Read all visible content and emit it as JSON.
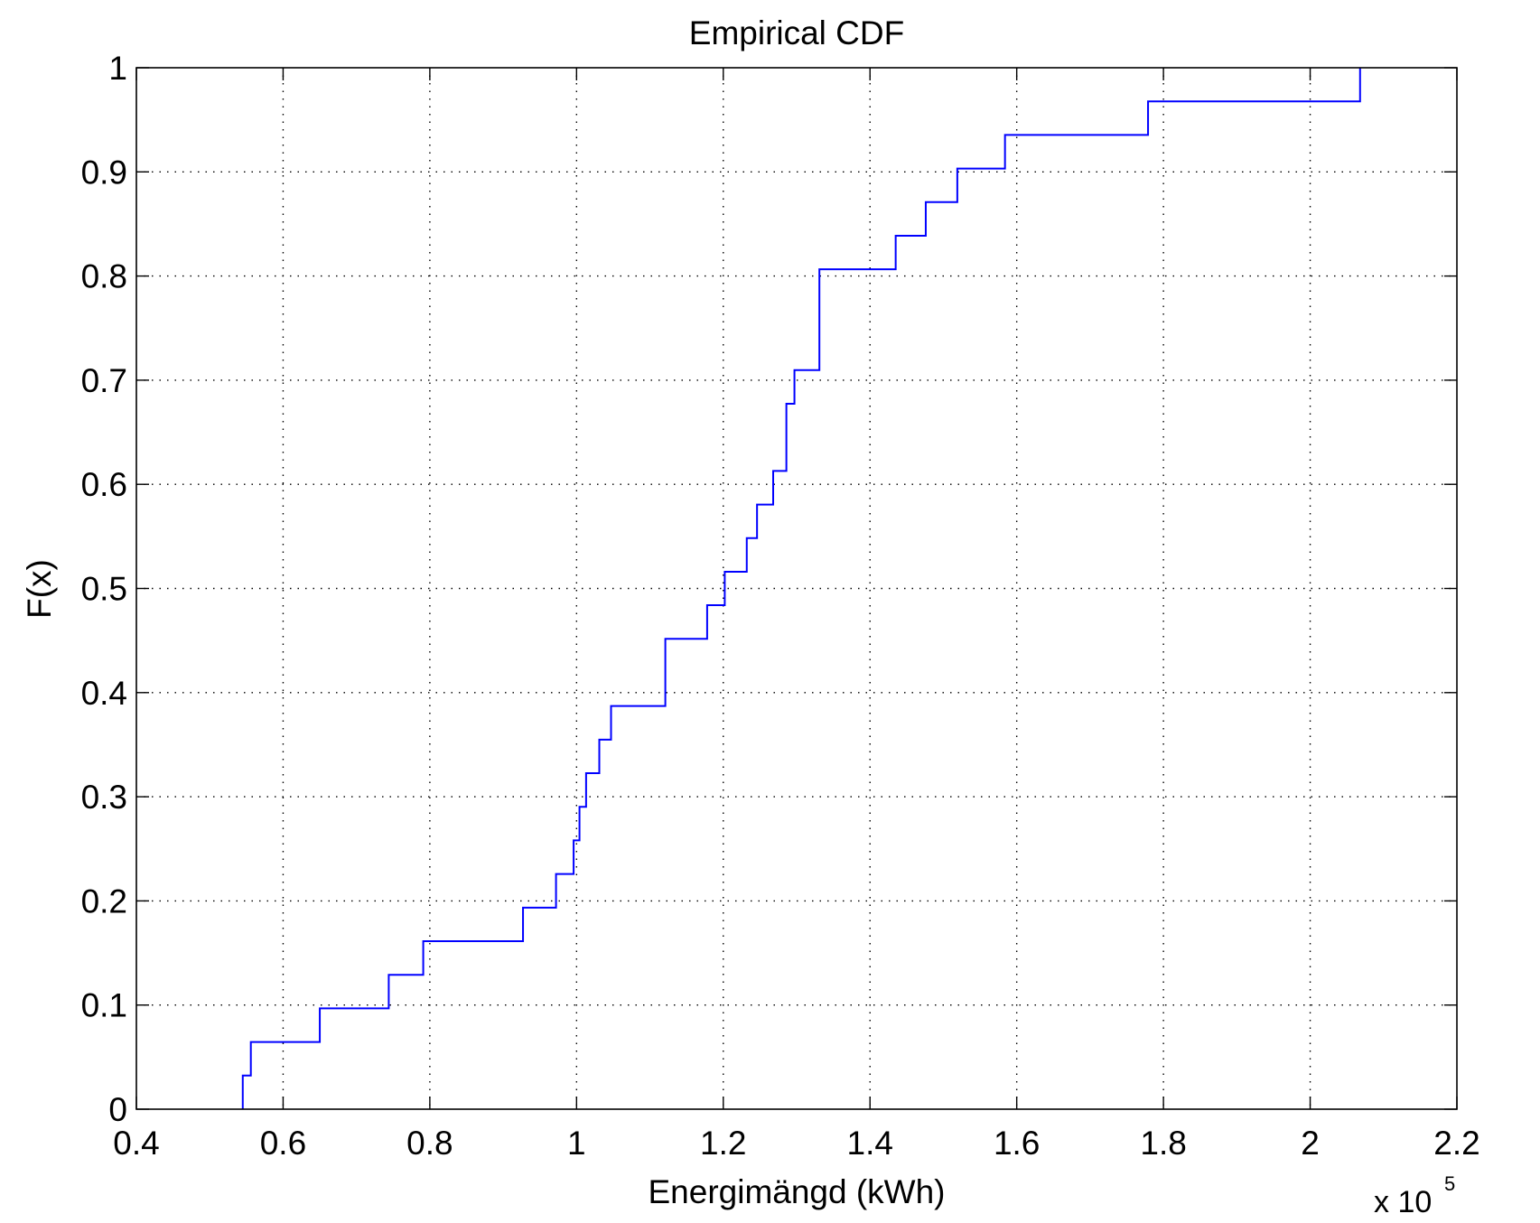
{
  "chart_data": {
    "type": "line",
    "subtype": "empirical-cdf-stairs",
    "title": "Empirical CDF",
    "xlabel": "Energimängd (kWh)",
    "ylabel": "F(x)",
    "x_multiplier": "x 10",
    "x_multiplier_exponent": "5",
    "xlim": [
      0.4,
      2.2
    ],
    "ylim": [
      0,
      1
    ],
    "x_ticks": [
      "0.4",
      "0.6",
      "0.8",
      "1",
      "1.2",
      "1.4",
      "1.6",
      "1.8",
      "2",
      "2.2"
    ],
    "y_ticks": [
      "0",
      "0.1",
      "0.2",
      "0.3",
      "0.4",
      "0.5",
      "0.6",
      "0.7",
      "0.8",
      "0.9",
      "1"
    ],
    "grid": true,
    "grid_style": "dotted",
    "series": [
      {
        "color": "#0000ff",
        "x": [
          0.545,
          0.556,
          0.65,
          0.744,
          0.791,
          0.927,
          0.972,
          0.996,
          1.004,
          1.013,
          1.031,
          1.047,
          1.121,
          1.178,
          1.202,
          1.232,
          1.246,
          1.268,
          1.286,
          1.297,
          1.331,
          1.435,
          1.476,
          1.519,
          1.584,
          1.779,
          2.068
        ],
        "y": [
          0.0323,
          0.0645,
          0.0968,
          0.129,
          0.1613,
          0.1935,
          0.2258,
          0.2581,
          0.2903,
          0.3226,
          0.3548,
          0.3871,
          0.4516,
          0.4839,
          0.5161,
          0.5484,
          0.5806,
          0.6129,
          0.6774,
          0.7097,
          0.8065,
          0.8387,
          0.871,
          0.9032,
          0.9355,
          0.9677,
          1.0
        ]
      }
    ]
  }
}
